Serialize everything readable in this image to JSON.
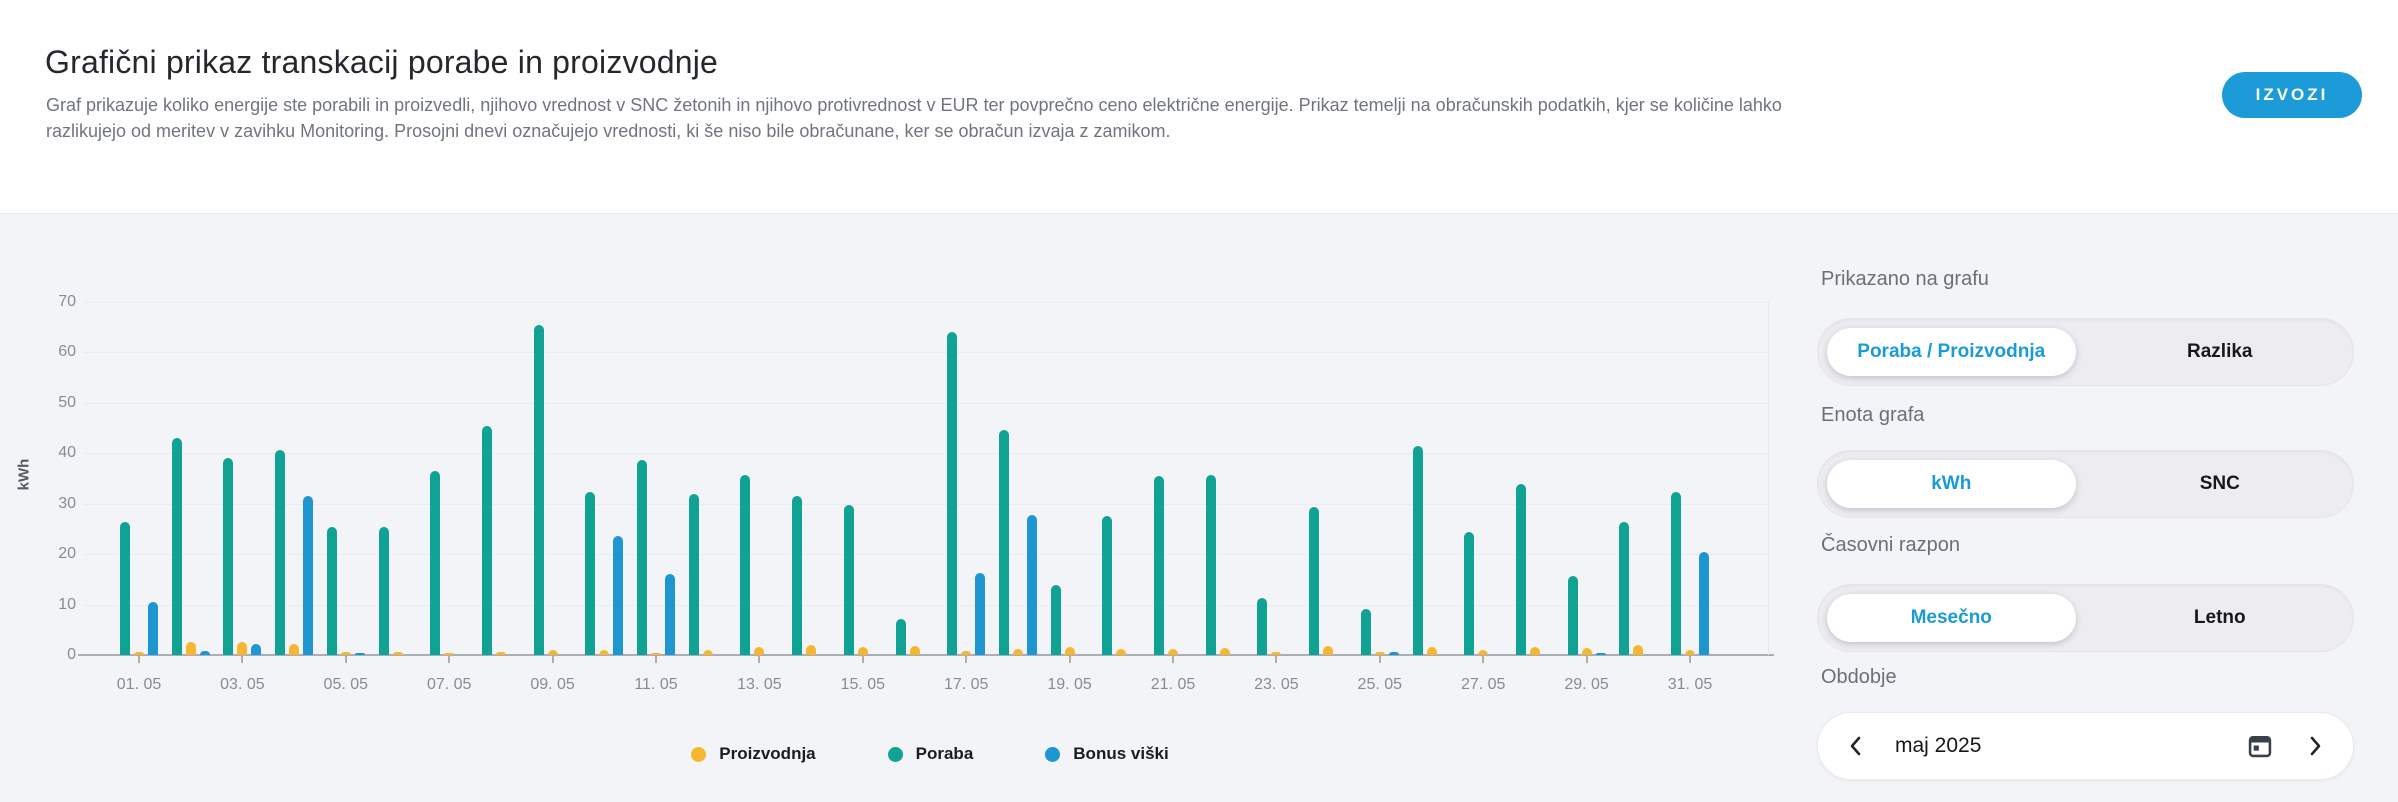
{
  "header": {
    "title": "Grafični prikaz transkacij porabe in proizvodnje",
    "description_line1": "Graf prikazuje koliko energije ste porabili in proizvedli, njihovo vrednost v SNC žetonih in njihovo protivrednost v EUR ter povprečno ceno električne energije. Prikaz temelji na obračunskih podatkih, kjer se količine lahko",
    "description_line2": "razlikujejo od meritev v zavihku Monitoring. Prosojni dnevi označujejo vrednosti, ki še niso bile obračunane, ker se obračun izvaja z zamikom.",
    "export_button": "IZVOZI"
  },
  "chart_data": {
    "type": "bar",
    "title": "",
    "xlabel": "",
    "ylabel": "kWh",
    "ylim": [
      0,
      70
    ],
    "yticks": [
      0,
      10,
      20,
      30,
      40,
      50,
      60,
      70
    ],
    "grid": true,
    "legend_position": "bottom",
    "categories": [
      "01.05",
      "02.05",
      "03.05",
      "04.05",
      "05.05",
      "06.05",
      "07.05",
      "08.05",
      "09.05",
      "10.05",
      "11.05",
      "12.05",
      "13.05",
      "14.05",
      "15.05",
      "16.05",
      "17.05",
      "18.05",
      "19.05",
      "20.05",
      "21.05",
      "22.05",
      "23.05",
      "24.05",
      "25.05",
      "26.05",
      "27.05",
      "28.05",
      "29.05",
      "30.05",
      "31.05"
    ],
    "x_tick_labels": [
      "01. 05",
      "03. 05",
      "05. 05",
      "07. 05",
      "09. 05",
      "11. 05",
      "13. 05",
      "15. 05",
      "17. 05",
      "19. 05",
      "21. 05",
      "23. 05",
      "25. 05",
      "27. 05",
      "29. 05",
      "31. 05"
    ],
    "series": [
      {
        "name": "Poraba",
        "color": "#10a294",
        "values": [
          26.3,
          43.0,
          39.0,
          40.7,
          25.4,
          25.3,
          36.4,
          45.4,
          65.5,
          32.3,
          38.7,
          32.0,
          35.7,
          31.6,
          29.7,
          7.2,
          64.0,
          44.6,
          13.8,
          27.6,
          35.4,
          35.7,
          11.4,
          29.4,
          9.1,
          41.5,
          24.3,
          33.9,
          15.6,
          26.4,
          32.4
        ]
      },
      {
        "name": "Proizvodnja",
        "color": "#f5b731",
        "values": [
          0.6,
          2.6,
          2.6,
          2.1,
          0.6,
          0.5,
          0.4,
          0.5,
          1.0,
          1.0,
          0.4,
          0.9,
          1.5,
          2.0,
          1.5,
          1.8,
          0.8,
          1.1,
          1.6,
          1.2,
          1.1,
          1.4,
          0.5,
          1.8,
          0.6,
          1.6,
          0.9,
          1.6,
          1.4,
          1.9,
          0.9
        ]
      },
      {
        "name": "Bonus viški",
        "color": "#1e96d2",
        "values": [
          10.6,
          0.7,
          2.1,
          31.6,
          0.3,
          0,
          0,
          0,
          0,
          23.5,
          16.1,
          0,
          0,
          0,
          0,
          0,
          16.2,
          27.7,
          0,
          0,
          0,
          0,
          0,
          0,
          0.6,
          0,
          0,
          0,
          0.3,
          0,
          20.5
        ]
      }
    ],
    "legend": [
      {
        "label": "Proizvodnja",
        "color": "#f5b731"
      },
      {
        "label": "Poraba",
        "color": "#10a294"
      },
      {
        "label": "Bonus viški",
        "color": "#1e96d2"
      }
    ]
  },
  "sidebar": {
    "groups": [
      {
        "label": "Prikazano na grafu",
        "options": [
          "Poraba / Proizvodnja",
          "Razlika"
        ],
        "selected": 0
      },
      {
        "label": "Enota grafa",
        "options": [
          "kWh",
          "SNC"
        ],
        "selected": 0
      },
      {
        "label": "Časovni razpon",
        "options": [
          "Mesečno",
          "Letno"
        ],
        "selected": 0
      }
    ],
    "period": {
      "label": "Obdobje",
      "value": "maj 2025"
    }
  },
  "colors": {
    "accent_blue": "#1c9bd8",
    "teal": "#10a294",
    "yellow": "#f5b731",
    "blue": "#1e96d2",
    "page_bg": "#f3f4f7",
    "header_bg": "#ffffff"
  }
}
